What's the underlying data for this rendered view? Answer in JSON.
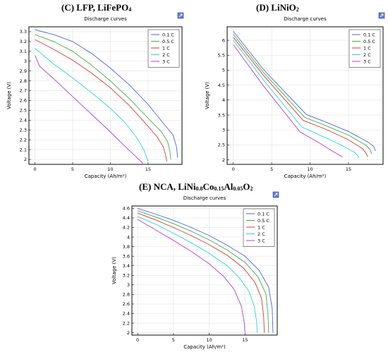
{
  "panels": [
    {
      "heading": "(C) LFP, LiFePO",
      "heading_sub": "4",
      "heading_after": ""
    },
    {
      "heading": "(D) LiNiO",
      "heading_sub": "2",
      "heading_after": ""
    },
    {
      "heading": "(E) NCA, LiNi",
      "heading_parts": [
        {
          "text": "(E) NCA, LiNi",
          "sub": false
        },
        {
          "text": "0.8",
          "sub": true
        },
        {
          "text": "Co",
          "sub": false
        },
        {
          "text": "0.15",
          "sub": true
        },
        {
          "text": "Al",
          "sub": false
        },
        {
          "text": "0.05",
          "sub": true
        },
        {
          "text": "O",
          "sub": false
        },
        {
          "text": "2",
          "sub": true
        }
      ]
    }
  ],
  "chart_data": [
    {
      "type": "line",
      "title": "Discharge curves",
      "xlabel": "Capacity (Ah/m²)",
      "ylabel": "Voltage (V)",
      "xlim": [
        -0.8,
        19.5
      ],
      "ylim": [
        1.95,
        3.35
      ],
      "xticks": [
        0,
        5,
        10,
        15
      ],
      "yticks": [
        2,
        2.1,
        2.2,
        2.3,
        2.4,
        2.5,
        2.6,
        2.7,
        2.8,
        2.9,
        3,
        3.1,
        3.2,
        3.3
      ],
      "ytick_labels": [
        "2",
        "2.1",
        "2.2",
        "2.3",
        "2.4",
        "2.5",
        "2.6",
        "2.7",
        "2.8",
        "2.9",
        "3",
        "3.1",
        "3.2",
        "3.3"
      ],
      "legend_position": "top-right",
      "series": [
        {
          "name": "0.1 C",
          "color": "#4f62e6",
          "x": [
            0,
            2.5,
            5,
            7.5,
            10,
            12.5,
            15,
            17,
            18.3,
            18.8,
            18.9
          ],
          "y": [
            3.32,
            3.27,
            3.2,
            3.08,
            2.93,
            2.76,
            2.56,
            2.37,
            2.25,
            2.12,
            2.02
          ]
        },
        {
          "name": "0.5 C",
          "color": "#3cb043",
          "x": [
            0,
            2.5,
            5,
            7.5,
            10,
            12.5,
            15,
            16.8,
            17.6,
            17.9,
            18.0
          ],
          "y": [
            3.27,
            3.2,
            3.1,
            2.96,
            2.8,
            2.62,
            2.42,
            2.28,
            2.18,
            2.08,
            2.0
          ]
        },
        {
          "name": "1 C",
          "color": "#d93a3a",
          "x": [
            0,
            2.5,
            5,
            7.5,
            10,
            12.5,
            14.5,
            16.2,
            17.0,
            17.3,
            17.5
          ],
          "y": [
            3.22,
            3.12,
            3.01,
            2.88,
            2.73,
            2.55,
            2.38,
            2.23,
            2.13,
            2.05,
            1.98
          ]
        },
        {
          "name": "2 C",
          "color": "#29d6dc",
          "x": [
            0,
            2.5,
            5,
            7.5,
            10,
            12,
            13.5,
            14.5,
            15.0
          ],
          "y": [
            3.13,
            2.97,
            2.83,
            2.68,
            2.52,
            2.37,
            2.22,
            2.09,
            1.98
          ]
        },
        {
          "name": "3 C",
          "color": "#b23fd1",
          "x": [
            0,
            0.6,
            2.5,
            5,
            7.5,
            10,
            12,
            13.5,
            14.3
          ],
          "y": [
            3.06,
            2.95,
            2.82,
            2.64,
            2.46,
            2.28,
            2.13,
            2.02,
            1.96
          ]
        }
      ]
    },
    {
      "type": "line",
      "title": "Discharge curves",
      "xlabel": "Capacity (Ah/m²)",
      "ylabel": "Voltage (V)",
      "xlim": [
        -0.8,
        19.5
      ],
      "ylim": [
        1.85,
        6.45
      ],
      "xticks": [
        0,
        5,
        10,
        15
      ],
      "yticks": [
        2,
        2.5,
        3,
        3.5,
        4,
        4.5,
        5,
        5.5,
        6
      ],
      "ytick_labels": [
        "2",
        "2.5",
        "3",
        "3.5",
        "4",
        "4.5",
        "5",
        "5.5",
        "6"
      ],
      "legend_position": "top-right",
      "series": [
        {
          "name": "0.1 C",
          "color": "#4f62e6",
          "x": [
            0,
            4,
            9.5,
            12,
            15,
            17.5,
            18.3,
            18.5
          ],
          "y": [
            6.3,
            5.0,
            3.52,
            3.27,
            2.95,
            2.6,
            2.45,
            2.3
          ]
        },
        {
          "name": "0.5 C",
          "color": "#3cb043",
          "x": [
            0,
            4,
            9.3,
            12,
            15,
            17.2,
            17.8,
            18.0
          ],
          "y": [
            6.2,
            4.9,
            3.42,
            3.15,
            2.83,
            2.5,
            2.35,
            2.2
          ]
        },
        {
          "name": "1 C",
          "color": "#d93a3a",
          "x": [
            0,
            4,
            9.1,
            12,
            14.8,
            16.8,
            17.3,
            17.5
          ],
          "y": [
            6.1,
            4.8,
            3.32,
            3.03,
            2.7,
            2.38,
            2.22,
            2.1
          ]
        },
        {
          "name": "2 C",
          "color": "#29d6dc",
          "x": [
            0,
            4,
            8.9,
            11.5,
            14,
            15.8,
            16.4
          ],
          "y": [
            6.0,
            4.65,
            3.1,
            2.8,
            2.5,
            2.25,
            2.08
          ]
        },
        {
          "name": "3 C",
          "color": "#b23fd1",
          "x": [
            0,
            4,
            8.7,
            11,
            13,
            14.2
          ],
          "y": [
            5.85,
            4.45,
            2.93,
            2.6,
            2.28,
            2.1
          ]
        }
      ]
    },
    {
      "type": "line",
      "title": "Discharge curves",
      "xlabel": "Capacity (Ah/m²)",
      "ylabel": "Voltage (V)",
      "xlim": [
        -0.8,
        19.5
      ],
      "ylim": [
        1.95,
        4.65
      ],
      "xticks": [
        0,
        5,
        10,
        15
      ],
      "yticks": [
        2,
        2.2,
        2.4,
        2.6,
        2.8,
        3,
        3.2,
        3.4,
        3.6,
        3.8,
        4,
        4.2,
        4.4,
        4.6
      ],
      "ytick_labels": [
        "2",
        "2.2",
        "2.4",
        "2.6",
        "2.8",
        "3",
        "3.2",
        "3.4",
        "3.6",
        "3.8",
        "4",
        "4.2",
        "4.4",
        "4.6"
      ],
      "legend_position": "top-right",
      "series": [
        {
          "name": "0.1 C",
          "color": "#4f62e6",
          "x": [
            0,
            2.5,
            5,
            7.5,
            10,
            12.5,
            15,
            17,
            18.3,
            18.8,
            18.9
          ],
          "y": [
            4.6,
            4.48,
            4.35,
            4.2,
            4.03,
            3.83,
            3.6,
            3.3,
            2.95,
            2.5,
            2.0
          ]
        },
        {
          "name": "0.5 C",
          "color": "#3cb043",
          "x": [
            0,
            2.5,
            5,
            7.5,
            10,
            12.5,
            15,
            16.8,
            17.9,
            18.2,
            18.3
          ],
          "y": [
            4.55,
            4.42,
            4.28,
            4.12,
            3.94,
            3.73,
            3.47,
            3.17,
            2.82,
            2.4,
            2.0
          ]
        },
        {
          "name": "1 C",
          "color": "#d93a3a",
          "x": [
            0,
            2.5,
            5,
            7.5,
            10,
            12.5,
            14.8,
            16.4,
            17.3,
            17.6,
            17.7
          ],
          "y": [
            4.5,
            4.36,
            4.2,
            4.03,
            3.84,
            3.62,
            3.35,
            3.05,
            2.72,
            2.35,
            2.0
          ]
        },
        {
          "name": "2 C",
          "color": "#29d6dc",
          "x": [
            0,
            2.5,
            5,
            7.5,
            10,
            12.5,
            14.2,
            15.6,
            16.3,
            16.6,
            16.7
          ],
          "y": [
            4.43,
            4.27,
            4.08,
            3.88,
            3.66,
            3.4,
            3.15,
            2.85,
            2.55,
            2.25,
            2.0
          ]
        },
        {
          "name": "3 C",
          "color": "#b23fd1",
          "x": [
            0,
            2.5,
            5,
            7.5,
            10,
            12,
            13.5,
            14.5,
            14.9,
            15.0
          ],
          "y": [
            4.37,
            4.15,
            3.93,
            3.7,
            3.44,
            3.18,
            2.9,
            2.55,
            2.2,
            2.0
          ]
        }
      ]
    }
  ]
}
